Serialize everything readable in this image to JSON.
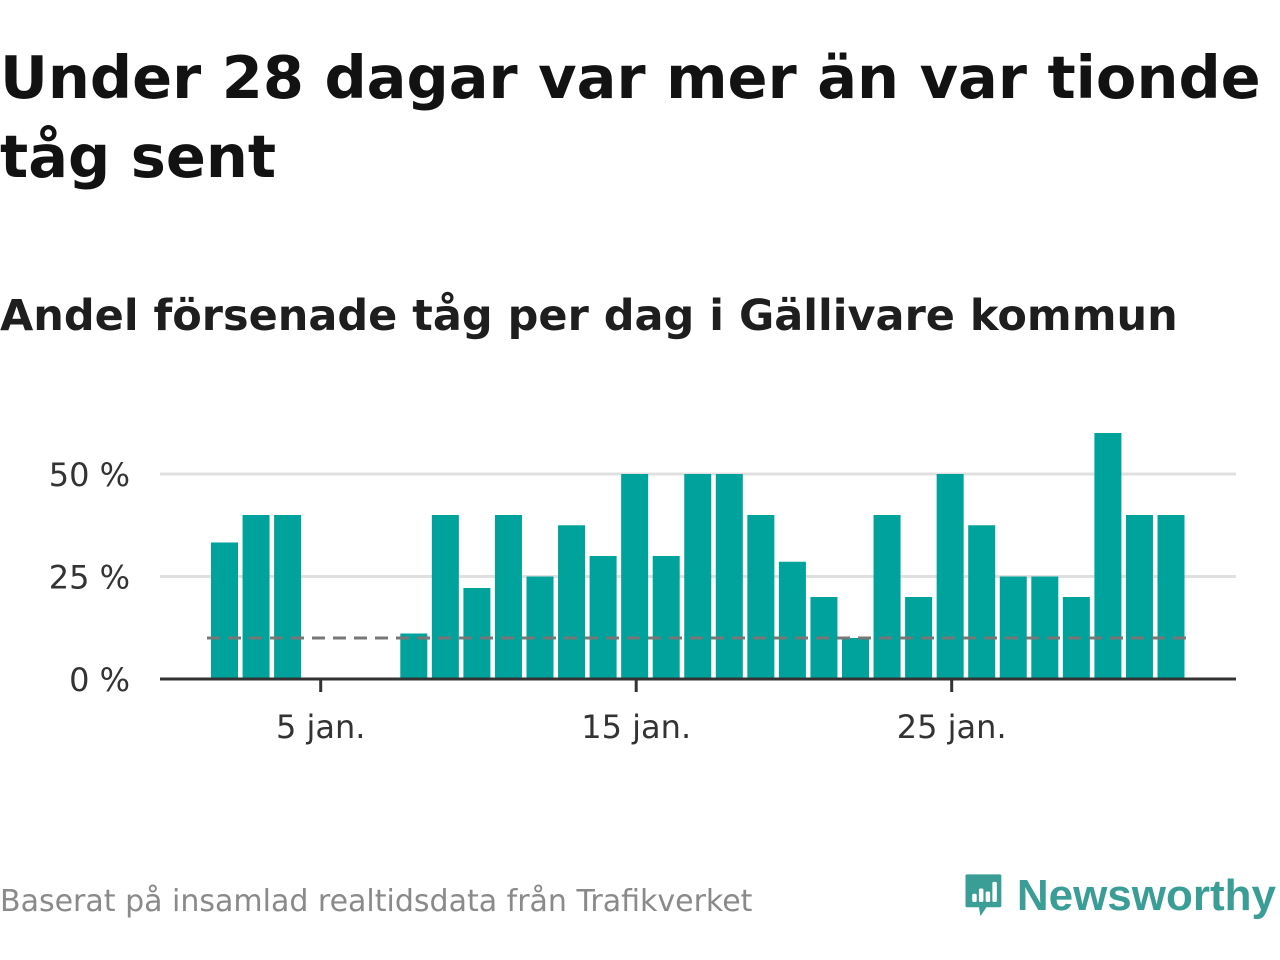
{
  "title": "Under 28 dagar var mer än var tionde tåg sent",
  "subtitle": "Andel försenade tåg per dag i Gällivare kommun",
  "footer": "Baserat på insamlad realtidsdata från Trafikverket",
  "brand": {
    "name": "Newsworthy",
    "icon": "chart-speech-bubble-icon",
    "color": "#3a9e97"
  },
  "chart_data": {
    "type": "bar",
    "title": "",
    "xlabel": "",
    "ylabel": "",
    "bar_color": "#00a39b",
    "reference_line": {
      "value": 10,
      "style": "dashed",
      "color": "#777777"
    },
    "grid": true,
    "ylim": [
      0,
      60
    ],
    "y_ticks": [
      {
        "value": 0,
        "label": "0 %"
      },
      {
        "value": 25,
        "label": "25 %"
      },
      {
        "value": 50,
        "label": "50 %"
      }
    ],
    "x_ticks": [
      {
        "day": 5,
        "label": "5 jan."
      },
      {
        "day": 15,
        "label": "15 jan."
      },
      {
        "day": 25,
        "label": "25 jan."
      }
    ],
    "categories": [
      "1 jan.",
      "2 jan.",
      "3 jan.",
      "4 jan.",
      "5 jan.",
      "6 jan.",
      "7 jan.",
      "8 jan.",
      "9 jan.",
      "10 jan.",
      "11 jan.",
      "12 jan.",
      "13 jan.",
      "14 jan.",
      "15 jan.",
      "16 jan.",
      "17 jan.",
      "18 jan.",
      "19 jan.",
      "20 jan.",
      "21 jan.",
      "22 jan.",
      "23 jan.",
      "24 jan.",
      "25 jan.",
      "26 jan.",
      "27 jan.",
      "28 jan.",
      "29 jan.",
      "30 jan.",
      "31 jan."
    ],
    "values": [
      33.3,
      40,
      40,
      0,
      0,
      0,
      11.1,
      40,
      22.2,
      40,
      25,
      37.5,
      30,
      50,
      30,
      50,
      50,
      40,
      28.6,
      20,
      10,
      40,
      20,
      50,
      37.5,
      25,
      25,
      20,
      60,
      40,
      40
    ]
  }
}
